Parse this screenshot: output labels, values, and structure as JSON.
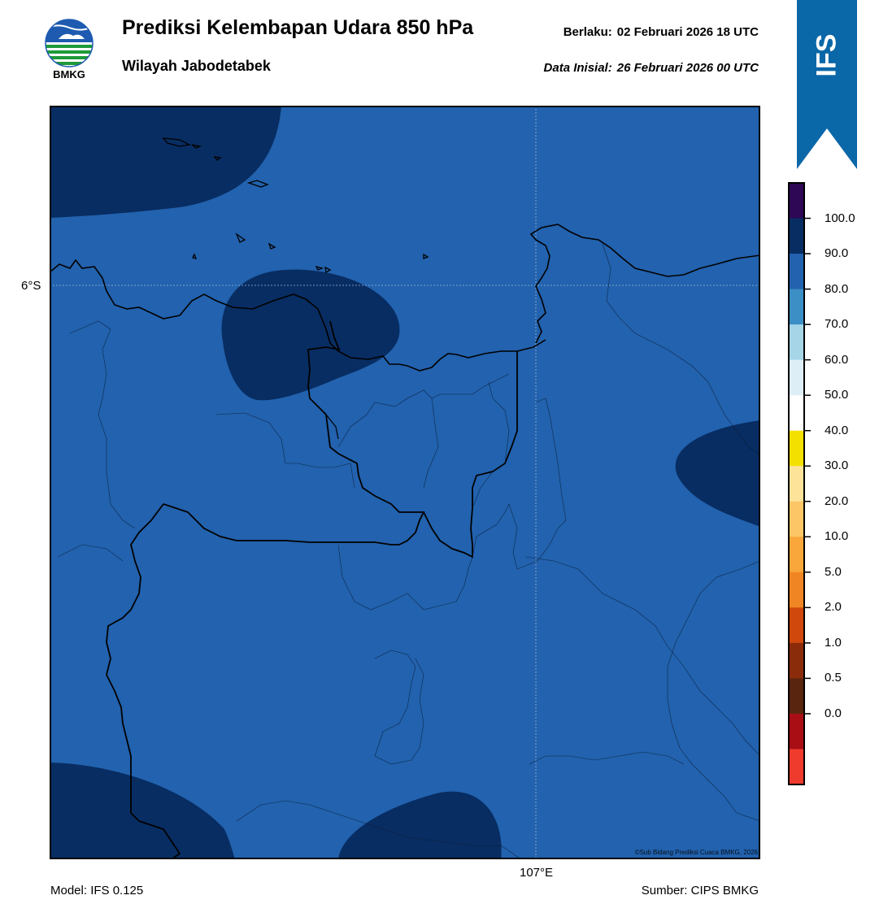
{
  "header": {
    "title": "Prediksi Kelembapan Udara 850 hPa",
    "subtitle": "Wilayah Jabodetabek",
    "valid_label": "Berlaku:",
    "valid_value": "02 Februari 2026 18 UTC",
    "init_label": "Data Inisial:",
    "init_value": "26 Februari 2026 00 UTC"
  },
  "logo": {
    "text": "BMKG"
  },
  "badge": {
    "text": "IFS",
    "color": "#0a67a8"
  },
  "map": {
    "lat_label": "6°S",
    "lon_label": "107°E",
    "copyright": "©Sub Bidang Prediksi Cuaca BMKG, 2026",
    "base_color": "#2262ae",
    "high_color": "#082d62"
  },
  "colorbar": {
    "ticks": [
      "100.0",
      "90.0",
      "80.0",
      "70.0",
      "60.0",
      "50.0",
      "40.0",
      "30.0",
      "20.0",
      "10.0",
      "5.0",
      "2.0",
      "1.0",
      "0.5",
      "0.0"
    ],
    "colors_top_to_bottom": [
      "#2e0854",
      "#082d62",
      "#2262ae",
      "#3b8fc4",
      "#a6d5e8",
      "#ddeef6",
      "#ffffff",
      "#f4e000",
      "#fde29a",
      "#fcc666",
      "#f9a63a",
      "#f08524",
      "#d0480c",
      "#8a2c0a",
      "#5a250e",
      "#a80e14",
      "#ee3b2e"
    ]
  },
  "footer": {
    "model": "Model: IFS 0.125",
    "source": "Sumber: CIPS BMKG"
  }
}
